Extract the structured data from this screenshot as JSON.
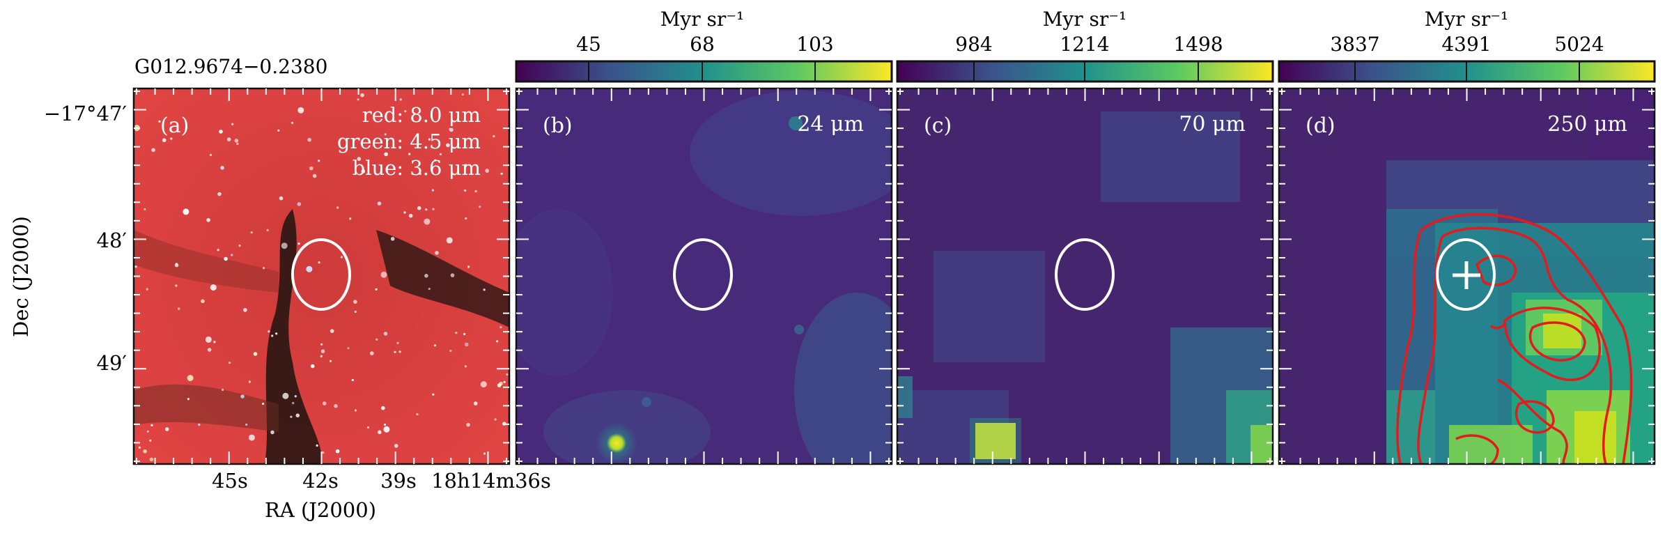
{
  "figure": {
    "source_name": "G012.9674−0.2380",
    "axes": {
      "ylabel": "Dec (J2000)",
      "xlabel": "RA (J2000)",
      "y_ticks": [
        "−17°47′",
        "48′",
        "49′"
      ],
      "x_ticks": [
        "45s",
        "42s",
        "39s",
        "18h14m36s"
      ]
    },
    "panels": [
      {
        "id": "a",
        "label": "(a)",
        "legend": [
          "red: 8.0 μm",
          "green: 4.5 μm",
          "blue: 3.6 μm"
        ],
        "kind": "rgb-composite"
      },
      {
        "id": "b",
        "label": "(b)",
        "wavelength": "24 μm",
        "colorbar": {
          "unit": "Myr sr⁻¹",
          "ticks": [
            "45",
            "68",
            "103"
          ]
        },
        "kind": "viridis-map"
      },
      {
        "id": "c",
        "label": "(c)",
        "wavelength": "70 μm",
        "colorbar": {
          "unit": "Myr sr⁻¹",
          "ticks": [
            "984",
            "1214",
            "1498"
          ]
        },
        "kind": "viridis-map"
      },
      {
        "id": "d",
        "label": "(d)",
        "wavelength": "250 μm",
        "colorbar": {
          "unit": "Myr sr⁻¹",
          "ticks": [
            "3837",
            "4391",
            "5024"
          ]
        },
        "kind": "viridis-map",
        "overlays": [
          "red-contours",
          "cross-marker"
        ]
      }
    ],
    "colors": {
      "viridis_low": "#440154",
      "viridis_mid": "#21918c",
      "viridis_high": "#fde725",
      "contour": "#e41a1c",
      "ellipse": "#ffffff"
    }
  }
}
